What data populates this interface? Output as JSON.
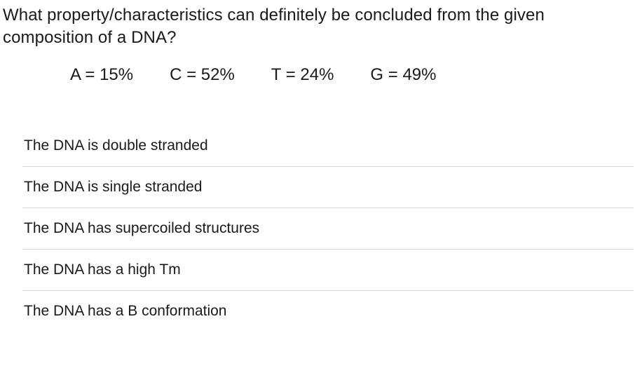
{
  "question": {
    "line1": "What property/characteristics can definitely be concluded from the given",
    "line2": "composition of a DNA?"
  },
  "composition": {
    "A": "A = 15%",
    "C": "C  = 52%",
    "T": "T = 24%",
    "G": "G = 49%"
  },
  "options": [
    "The DNA is double stranded",
    "The DNA is single stranded",
    "The DNA has supercoiled structures",
    "The DNA has a high Tm",
    "The DNA has a B conformation"
  ],
  "colors": {
    "text": "#1a1a1a",
    "divider": "#d8d8d8",
    "background": "#ffffff"
  },
  "typography": {
    "question_fontsize": 24,
    "composition_fontsize": 24,
    "option_fontsize": 21,
    "font_family": "Segoe UI"
  }
}
